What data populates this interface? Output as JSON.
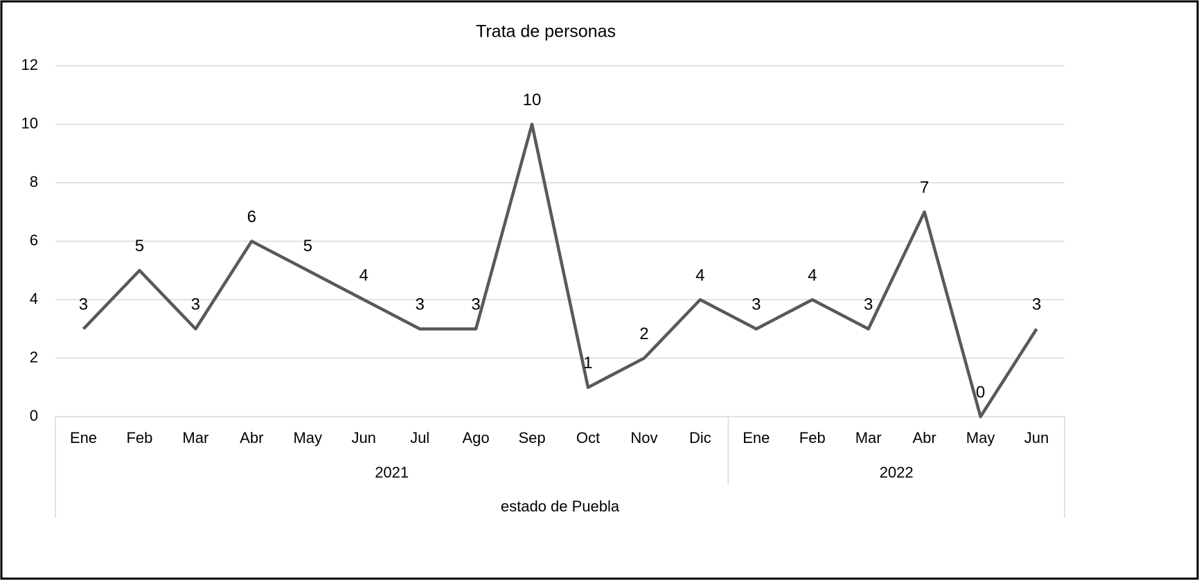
{
  "chart_data": {
    "type": "line",
    "title": "Trata de personas",
    "categories": [
      "Ene",
      "Feb",
      "Mar",
      "Abr",
      "May",
      "Jun",
      "Jul",
      "Ago",
      "Sep",
      "Oct",
      "Nov",
      "Dic",
      "Ene",
      "Feb",
      "Mar",
      "Abr",
      "May",
      "Jun"
    ],
    "category_groups": [
      {
        "label": "2021",
        "size": 12
      },
      {
        "label": "2022",
        "size": 6
      }
    ],
    "x_label": "estado de Puebla",
    "values": [
      3,
      5,
      3,
      6,
      5,
      4,
      3,
      3,
      10,
      1,
      2,
      4,
      3,
      4,
      3,
      7,
      0,
      3
    ],
    "color": "#595959",
    "ylim": [
      0,
      12
    ],
    "yticks": [
      0,
      2,
      4,
      6,
      8,
      10,
      12
    ],
    "grid": true
  }
}
